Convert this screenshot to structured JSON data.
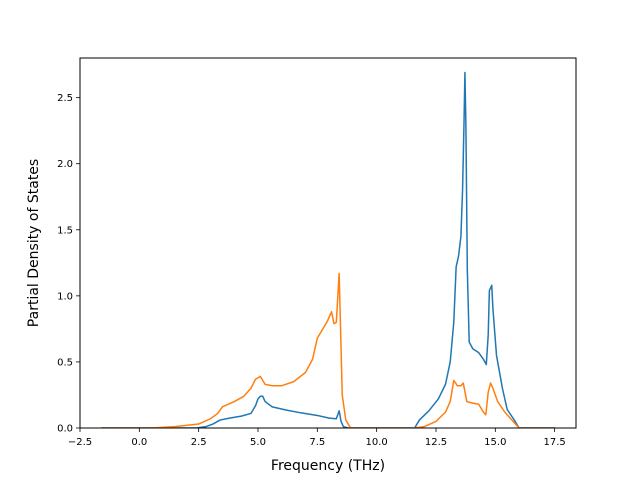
{
  "chart_data": {
    "type": "line",
    "title": "",
    "xlabel": "Frequency (THz)",
    "ylabel": "Partial Density of States",
    "xlim": [
      -2.5,
      18.4
    ],
    "ylim": [
      0,
      2.8
    ],
    "grid": false,
    "legend": "none",
    "x_ticks": [
      -2.5,
      0.0,
      2.5,
      5.0,
      7.5,
      10.0,
      12.5,
      15.0,
      17.5
    ],
    "x_tick_labels": [
      "−2.5",
      "0.0",
      "2.5",
      "5.0",
      "7.5",
      "10.0",
      "12.5",
      "15.0",
      "17.5"
    ],
    "y_ticks": [
      0.0,
      0.5,
      1.0,
      1.5,
      2.0,
      2.5
    ],
    "y_tick_labels": [
      "0.0",
      "0.5",
      "1.0",
      "1.5",
      "2.0",
      "2.5"
    ],
    "series": [
      {
        "color": "#1f77b4",
        "points": [
          [
            -1.6,
            0.0
          ],
          [
            2.4,
            0.0
          ],
          [
            2.8,
            0.01
          ],
          [
            3.1,
            0.03
          ],
          [
            3.4,
            0.06
          ],
          [
            3.8,
            0.075
          ],
          [
            4.3,
            0.09
          ],
          [
            4.7,
            0.11
          ],
          [
            4.9,
            0.17
          ],
          [
            5.0,
            0.22
          ],
          [
            5.1,
            0.24
          ],
          [
            5.2,
            0.24
          ],
          [
            5.3,
            0.2
          ],
          [
            5.6,
            0.16
          ],
          [
            6.2,
            0.135
          ],
          [
            6.8,
            0.115
          ],
          [
            7.5,
            0.095
          ],
          [
            8.0,
            0.075
          ],
          [
            8.3,
            0.07
          ],
          [
            8.42,
            0.13
          ],
          [
            8.5,
            0.05
          ],
          [
            8.6,
            0.01
          ],
          [
            8.8,
            0.0
          ],
          [
            11.6,
            0.0
          ],
          [
            11.8,
            0.06
          ],
          [
            12.2,
            0.13
          ],
          [
            12.6,
            0.22
          ],
          [
            12.9,
            0.33
          ],
          [
            13.1,
            0.5
          ],
          [
            13.25,
            0.8
          ],
          [
            13.35,
            1.22
          ],
          [
            13.45,
            1.3
          ],
          [
            13.55,
            1.45
          ],
          [
            13.62,
            1.8
          ],
          [
            13.68,
            2.3
          ],
          [
            13.72,
            2.69
          ],
          [
            13.76,
            2.3
          ],
          [
            13.82,
            1.2
          ],
          [
            13.9,
            0.65
          ],
          [
            14.05,
            0.6
          ],
          [
            14.3,
            0.57
          ],
          [
            14.5,
            0.52
          ],
          [
            14.62,
            0.48
          ],
          [
            14.7,
            0.7
          ],
          [
            14.75,
            1.04
          ],
          [
            14.85,
            1.08
          ],
          [
            14.9,
            0.9
          ],
          [
            15.05,
            0.55
          ],
          [
            15.3,
            0.3
          ],
          [
            15.5,
            0.14
          ],
          [
            15.8,
            0.06
          ],
          [
            16.0,
            0.0
          ],
          [
            17.5,
            0.0
          ]
        ]
      },
      {
        "color": "#ff7f0e",
        "points": [
          [
            -1.6,
            0.0
          ],
          [
            0.5,
            0.0
          ],
          [
            1.5,
            0.01
          ],
          [
            2.5,
            0.03
          ],
          [
            3.0,
            0.07
          ],
          [
            3.3,
            0.11
          ],
          [
            3.5,
            0.16
          ],
          [
            4.0,
            0.2
          ],
          [
            4.4,
            0.24
          ],
          [
            4.7,
            0.3
          ],
          [
            4.9,
            0.37
          ],
          [
            5.1,
            0.39
          ],
          [
            5.3,
            0.33
          ],
          [
            5.6,
            0.32
          ],
          [
            6.0,
            0.32
          ],
          [
            6.5,
            0.35
          ],
          [
            7.0,
            0.42
          ],
          [
            7.3,
            0.52
          ],
          [
            7.5,
            0.68
          ],
          [
            7.9,
            0.8
          ],
          [
            8.1,
            0.88
          ],
          [
            8.2,
            0.79
          ],
          [
            8.3,
            0.8
          ],
          [
            8.42,
            1.17
          ],
          [
            8.55,
            0.25
          ],
          [
            8.7,
            0.06
          ],
          [
            8.9,
            0.0
          ],
          [
            11.6,
            0.0
          ],
          [
            12.0,
            0.01
          ],
          [
            12.5,
            0.05
          ],
          [
            12.9,
            0.12
          ],
          [
            13.1,
            0.2
          ],
          [
            13.25,
            0.36
          ],
          [
            13.4,
            0.32
          ],
          [
            13.55,
            0.32
          ],
          [
            13.65,
            0.34
          ],
          [
            13.8,
            0.2
          ],
          [
            14.0,
            0.19
          ],
          [
            14.3,
            0.18
          ],
          [
            14.5,
            0.12
          ],
          [
            14.6,
            0.1
          ],
          [
            14.7,
            0.27
          ],
          [
            14.8,
            0.34
          ],
          [
            14.9,
            0.3
          ],
          [
            15.1,
            0.2
          ],
          [
            15.4,
            0.12
          ],
          [
            15.7,
            0.06
          ],
          [
            16.0,
            0.0
          ],
          [
            17.5,
            0.0
          ]
        ]
      }
    ]
  }
}
